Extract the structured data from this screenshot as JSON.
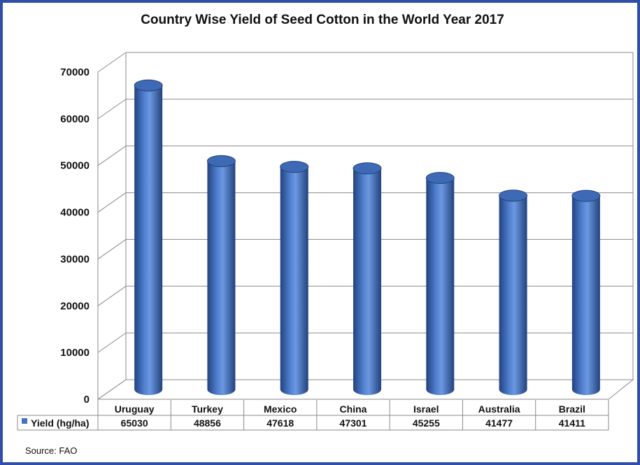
{
  "chart_data": {
    "type": "bar",
    "title": "Country Wise Yield of Seed Cotton in the World Year 2017",
    "categories": [
      "Uruguay",
      "Turkey",
      "Mexico",
      "China",
      "Israel",
      "Australia",
      "Brazil"
    ],
    "series": [
      {
        "name": "Yield (hg/ha)",
        "values": [
          65030,
          48856,
          47618,
          47301,
          45255,
          41477,
          41411
        ]
      }
    ],
    "value_labels": [
      "65030",
      "48856",
      "47618",
      "47301",
      "45255",
      "41477",
      "41411"
    ],
    "y_ticks": [
      "0",
      "10000",
      "20000",
      "30000",
      "40000",
      "50000",
      "60000",
      "70000"
    ],
    "ylim": [
      0,
      70000
    ],
    "grid": true,
    "legend": "data-table",
    "bar_color": "#4472c4",
    "bar_dark": "#22427e",
    "bar_top": "#3e6ab5",
    "source": "Source: FAO"
  }
}
